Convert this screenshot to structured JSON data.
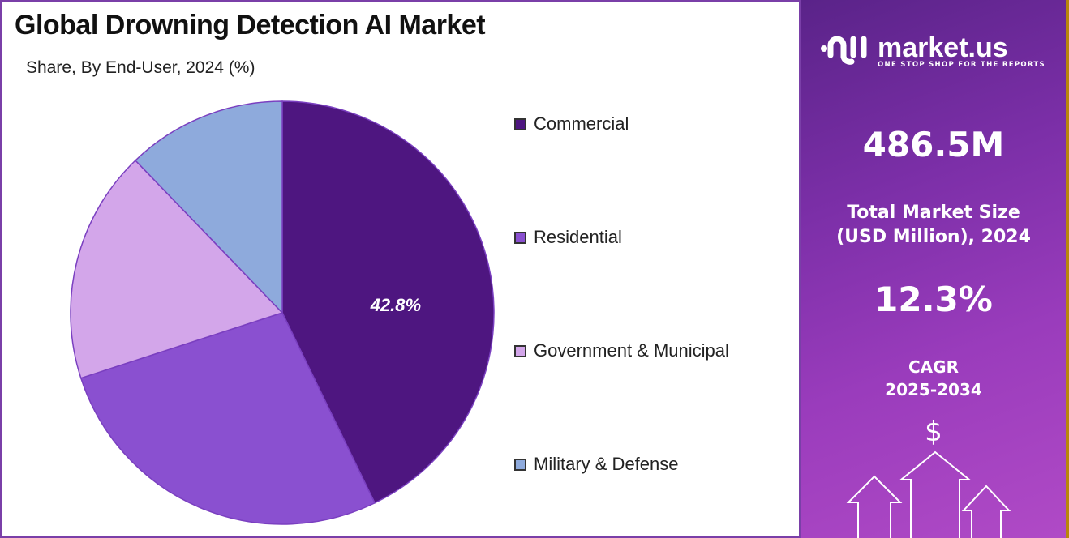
{
  "title": "Global Drowning Detection AI Market",
  "subtitle": "Share, By End-User, 2024 (%)",
  "chart_data": {
    "type": "pie",
    "title": "Global Drowning Detection AI Market",
    "subtitle": "Share, By End-User, 2024 (%)",
    "categories": [
      "Commercial",
      "Residential",
      "Government & Municipal",
      "Military & Defense"
    ],
    "values": [
      42.8,
      27.2,
      17.8,
      12.2
    ],
    "colors": [
      "#4e1680",
      "#8a50d0",
      "#d3a6ea",
      "#8eaadc"
    ],
    "data_labels": [
      "42.8%",
      null,
      null,
      null
    ],
    "legend_position": "right",
    "start_angle": "top, clockwise"
  },
  "sidebar": {
    "brand": "market.us",
    "tagline": "ONE STOP SHOP FOR THE REPORTS",
    "market_size": "486.5M",
    "market_size_label_1": "Total Market Size",
    "market_size_label_2": "(USD Million), 2024",
    "cagr": "12.3%",
    "cagr_label_1": "CAGR",
    "cagr_label_2": "2025-2034",
    "dollar_symbol": "$"
  }
}
